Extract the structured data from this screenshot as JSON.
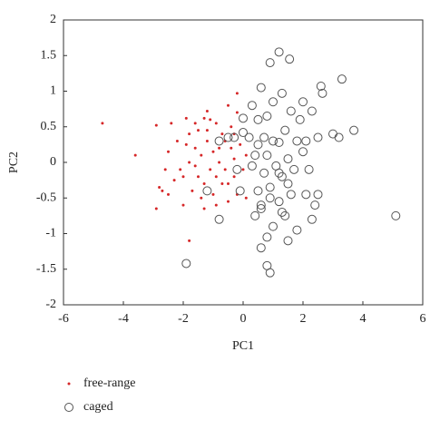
{
  "chart_data": {
    "type": "scatter",
    "x_label": "PC1",
    "y_label": "PC2",
    "xlim": [
      -6,
      6
    ],
    "xticks": [
      -6,
      -4,
      -2,
      0,
      2,
      4,
      6
    ],
    "ylim": [
      -2,
      2
    ],
    "yticks": [
      -2,
      -1.5,
      -1,
      -0.5,
      0,
      0.5,
      1,
      1.5,
      2
    ],
    "series": [
      {
        "name": "free-range",
        "color": "#d62728",
        "marker": "dot",
        "x": [
          -4.7,
          -3.6,
          -2.9,
          -2.8,
          -2.7,
          -2.5,
          -2.9,
          -2.5,
          -2.4,
          -1.9,
          -1.8,
          -1.3,
          -1.2,
          -0.9,
          -0.5,
          -0.2,
          -0.6,
          -0.2,
          -1.5,
          -2.1,
          -2.3,
          -2.0,
          -1.8,
          -1.6,
          -1.4,
          -1.2,
          -1.0,
          -0.8,
          -0.7,
          -0.4,
          -0.3,
          -0.1,
          0.1,
          -1.5,
          -1.3,
          -1.1,
          -0.9,
          -0.6,
          -0.3,
          0.0,
          -1.7,
          -1.4,
          -1.0,
          -0.7,
          -0.5,
          -0.2,
          -2.2,
          -1.9,
          -1.6,
          -1.2,
          -0.8,
          -0.4,
          -2.6,
          -1.8,
          -1.1,
          -0.5,
          -2.0,
          -1.3,
          -0.9,
          0.1,
          -1.6,
          -0.3
        ],
        "values": [
          0.55,
          0.1,
          0.52,
          -0.35,
          -0.4,
          -0.45,
          -0.65,
          0.15,
          0.55,
          0.62,
          -1.1,
          0.62,
          0.72,
          0.55,
          0.8,
          0.97,
          0.3,
          0.7,
          0.45,
          -0.1,
          -0.25,
          -0.2,
          0.0,
          0.2,
          0.1,
          0.3,
          0.15,
          0.2,
          0.4,
          0.2,
          0.05,
          0.25,
          0.1,
          -0.2,
          -0.3,
          -0.1,
          -0.2,
          -0.1,
          -0.2,
          -0.1,
          -0.4,
          -0.5,
          -0.45,
          -0.3,
          -0.55,
          -0.45,
          0.3,
          0.25,
          -0.05,
          0.45,
          0.0,
          0.5,
          -0.1,
          0.4,
          0.6,
          -0.3,
          -0.6,
          -0.65,
          -0.6,
          -0.5,
          0.55,
          0.4
        ]
      },
      {
        "name": "caged",
        "color": "#555555",
        "marker": "circle",
        "x": [
          1.2,
          1.55,
          0.9,
          3.3,
          2.6,
          0.6,
          1.3,
          2.65,
          1.0,
          2.0,
          0.3,
          1.6,
          2.3,
          0.0,
          0.5,
          0.8,
          1.9,
          3.7,
          0.0,
          -0.3,
          0.7,
          1.4,
          3.0,
          3.2,
          2.5,
          0.2,
          1.0,
          -0.5,
          1.2,
          1.8,
          0.5,
          2.1,
          -0.8,
          0.4,
          0.8,
          1.5,
          2.0,
          1.1,
          0.3,
          -0.2,
          1.7,
          0.7,
          1.3,
          1.5,
          0.9,
          0.5,
          2.1,
          -0.1,
          1.6,
          0.9,
          -1.2,
          2.5,
          0.6,
          1.2,
          2.4,
          0.6,
          1.3,
          1.4,
          0.4,
          -0.8,
          2.3,
          5.1,
          1.0,
          1.8,
          0.8,
          1.5,
          0.6,
          -1.9,
          0.8,
          0.9,
          1.2,
          2.2
        ],
        "values": [
          1.55,
          1.45,
          1.4,
          1.17,
          1.07,
          1.05,
          0.97,
          0.97,
          0.85,
          0.85,
          0.8,
          0.72,
          0.72,
          0.62,
          0.6,
          0.65,
          0.6,
          0.45,
          0.42,
          0.35,
          0.35,
          0.45,
          0.4,
          0.35,
          0.35,
          0.35,
          0.3,
          0.35,
          0.28,
          0.3,
          0.25,
          0.3,
          0.3,
          0.1,
          0.1,
          0.05,
          0.15,
          -0.05,
          -0.05,
          -0.1,
          -0.1,
          -0.15,
          -0.2,
          -0.3,
          -0.35,
          -0.4,
          -0.45,
          -0.4,
          -0.45,
          -0.5,
          -0.4,
          -0.45,
          -0.6,
          -0.55,
          -0.6,
          -0.65,
          -0.7,
          -0.75,
          -0.75,
          -0.8,
          -0.8,
          -0.75,
          -0.9,
          -0.95,
          -1.05,
          -1.1,
          -1.2,
          -1.42,
          -1.45,
          -1.55,
          -0.15,
          -0.1
        ]
      }
    ]
  }
}
